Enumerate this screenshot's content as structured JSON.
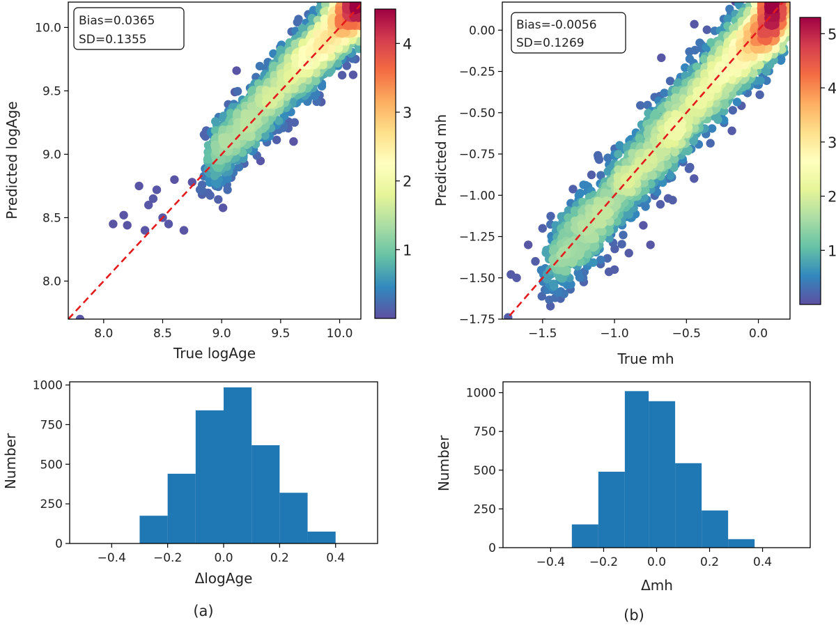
{
  "chart_data": [
    {
      "type": "scatter",
      "panel": "a",
      "xlabel": "True logAge",
      "ylabel": "Predicted logAge",
      "xlim": [
        7.7,
        10.18
      ],
      "ylim": [
        7.7,
        10.2
      ],
      "xticks": [
        "8.0",
        "8.5",
        "9.0",
        "9.5",
        "10.0"
      ],
      "yticks": [
        "8.0",
        "8.5",
        "9.0",
        "9.5",
        "10.0"
      ],
      "identity_line": true,
      "stats": {
        "bias": "Bias=0.0365",
        "sd": "SD=0.1355"
      },
      "colorbar": {
        "min": 0,
        "max": 4.5,
        "ticks": [
          "1",
          "2",
          "3",
          "4"
        ]
      },
      "outliers": [
        [
          7.8,
          7.7
        ],
        [
          8.08,
          8.45
        ],
        [
          8.17,
          8.52
        ],
        [
          8.2,
          8.44
        ],
        [
          8.35,
          8.4
        ],
        [
          8.38,
          8.6
        ],
        [
          8.42,
          8.65
        ],
        [
          8.5,
          8.5
        ],
        [
          8.55,
          8.45
        ],
        [
          8.68,
          8.4
        ],
        [
          8.45,
          8.72
        ],
        [
          8.3,
          8.75
        ],
        [
          8.6,
          8.8
        ],
        [
          8.75,
          8.78
        ],
        [
          8.85,
          8.7
        ],
        [
          8.95,
          8.75
        ],
        [
          9.05,
          8.72
        ]
      ],
      "n_points": 3500
    },
    {
      "type": "scatter",
      "panel": "b",
      "xlabel": "True mh",
      "ylabel": "Predicted mh",
      "xlim": [
        -1.78,
        0.22
      ],
      "ylim": [
        -1.75,
        0.17
      ],
      "xticks": [
        "−1.5",
        "−1.0",
        "−0.5",
        "0.0"
      ],
      "yticks": [
        "−1.75",
        "−1.50",
        "−1.25",
        "−1.00",
        "−0.75",
        "−0.50",
        "−0.25",
        "0.00"
      ],
      "identity_line": true,
      "stats": {
        "bias": "Bias=-0.0056",
        "sd": "SD=0.1269"
      },
      "colorbar": {
        "min": 0,
        "max": 5.3,
        "ticks": [
          "1",
          "2",
          "3",
          "4",
          "5"
        ]
      },
      "outliers": [
        [
          -1.72,
          -1.48
        ],
        [
          -1.68,
          -1.5
        ],
        [
          -1.74,
          -1.74
        ],
        [
          -1.6,
          -1.3
        ],
        [
          -1.55,
          -1.4
        ],
        [
          -1.45,
          -1.48
        ],
        [
          -1.42,
          -1.55
        ],
        [
          -1.38,
          -1.45
        ],
        [
          -1.3,
          -1.35
        ],
        [
          -1.18,
          -1.4
        ],
        [
          -1.2,
          -1.05
        ],
        [
          -1.0,
          -1.45
        ],
        [
          -0.9,
          -1.35
        ],
        [
          -0.75,
          -1.3
        ],
        [
          -1.5,
          -1.2
        ],
        [
          -1.35,
          -1.25
        ]
      ],
      "n_points": 3600
    },
    {
      "type": "bar",
      "panel": "a",
      "subtype": "histogram",
      "xlabel": "ΔlogAge",
      "ylabel": "Number",
      "bin_edges": [
        -0.3,
        -0.2,
        -0.1,
        0.0,
        0.1,
        0.2,
        0.3,
        0.4
      ],
      "values": [
        175,
        440,
        840,
        985,
        620,
        320,
        75
      ],
      "xlim": [
        -0.55,
        0.55
      ],
      "ylim": [
        0,
        1020
      ],
      "xticks": [
        "−0.4",
        "−0.2",
        "0.0",
        "0.2",
        "0.4"
      ],
      "yticks": [
        "0",
        "250",
        "500",
        "750",
        "1000"
      ],
      "color": "#1f77b4"
    },
    {
      "type": "bar",
      "panel": "b",
      "subtype": "histogram",
      "xlabel": "Δmh",
      "ylabel": "Number",
      "bin_edges": [
        -0.32,
        -0.22,
        -0.12,
        -0.03,
        0.07,
        0.17,
        0.27,
        0.37
      ],
      "values": [
        150,
        490,
        1010,
        945,
        545,
        240,
        55
      ],
      "xlim": [
        -0.58,
        0.58
      ],
      "ylim": [
        0,
        1070
      ],
      "xticks": [
        "−0.4",
        "−0.2",
        "0.0",
        "0.2",
        "0.4"
      ],
      "yticks": [
        "0",
        "250",
        "500",
        "750",
        "1000"
      ],
      "color": "#1f77b4"
    }
  ],
  "captions": {
    "a": "(a)",
    "b": "(b)"
  }
}
